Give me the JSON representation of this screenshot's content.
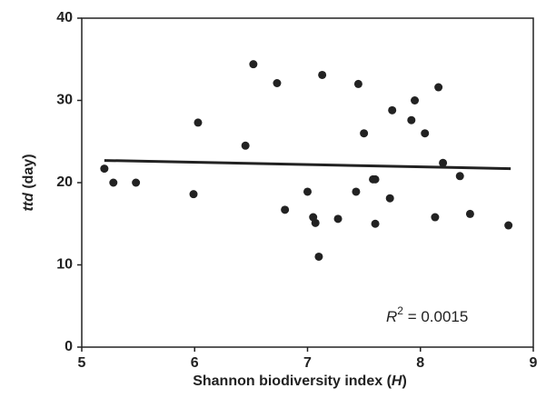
{
  "chart_data": {
    "type": "scatter",
    "x_label": [
      "Shannon biodiversity index (",
      "H",
      ")"
    ],
    "y_label": [
      "ttd",
      " (day)"
    ],
    "annotation": [
      "R",
      "2",
      " = 0.0015"
    ],
    "x": [
      5.2,
      5.28,
      5.48,
      5.99,
      6.03,
      6.45,
      6.52,
      6.73,
      6.8,
      7.0,
      7.05,
      7.07,
      7.1,
      7.13,
      7.27,
      7.43,
      7.45,
      7.5,
      7.58,
      7.6,
      7.6,
      7.73,
      7.75,
      7.92,
      7.95,
      8.04,
      8.13,
      8.16,
      8.2,
      8.35,
      8.44,
      8.78
    ],
    "values": [
      21.7,
      20.0,
      20.0,
      18.6,
      27.3,
      24.5,
      34.4,
      32.1,
      16.7,
      18.9,
      15.8,
      15.1,
      11.0,
      33.1,
      15.6,
      18.9,
      32.0,
      26.0,
      20.4,
      20.4,
      15.0,
      18.1,
      28.8,
      27.6,
      30.0,
      26.0,
      15.8,
      31.6,
      22.4,
      20.8,
      16.2,
      14.8
    ],
    "color": "#222222",
    "trend": {
      "x": [
        5.2,
        8.8
      ],
      "y": [
        22.7,
        21.7
      ],
      "color": "#222222"
    },
    "xlim": [
      5,
      9
    ],
    "xticks": [
      5,
      6,
      7,
      8,
      9
    ],
    "ylim": [
      0,
      40
    ],
    "yticks": [
      0,
      10,
      20,
      30,
      40
    ]
  }
}
